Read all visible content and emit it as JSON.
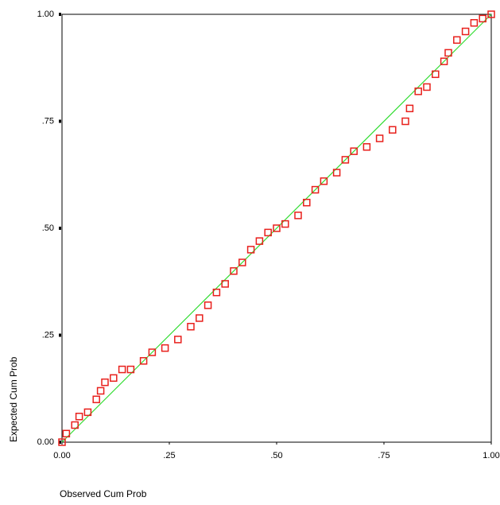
{
  "chart_data": {
    "type": "scatter",
    "xlabel": "Observed Cum Prob",
    "ylabel": "Expected Cum Prob",
    "xlim": [
      0,
      1
    ],
    "ylim": [
      0,
      1
    ],
    "xticks": [
      {
        "value": 0,
        "label": "0.00"
      },
      {
        "value": 0.25,
        "label": ".25"
      },
      {
        "value": 0.5,
        "label": ".50"
      },
      {
        "value": 0.75,
        "label": ".75"
      },
      {
        "value": 1,
        "label": "1.00"
      }
    ],
    "yticks": [
      {
        "value": 0,
        "label": "0.00"
      },
      {
        "value": 0.25,
        "label": ".25"
      },
      {
        "value": 0.5,
        "label": ".50"
      },
      {
        "value": 0.75,
        "label": ".75"
      },
      {
        "value": 1,
        "label": "1.00"
      }
    ],
    "reference_line_color": "#33dd33",
    "color": "#e8201c",
    "x": [
      0.0,
      0.01,
      0.03,
      0.04,
      0.06,
      0.08,
      0.09,
      0.1,
      0.12,
      0.14,
      0.16,
      0.19,
      0.21,
      0.24,
      0.27,
      0.3,
      0.32,
      0.34,
      0.36,
      0.38,
      0.4,
      0.42,
      0.44,
      0.46,
      0.48,
      0.5,
      0.52,
      0.55,
      0.57,
      0.59,
      0.61,
      0.64,
      0.66,
      0.68,
      0.71,
      0.74,
      0.77,
      0.8,
      0.81,
      0.83,
      0.85,
      0.87,
      0.89,
      0.9,
      0.92,
      0.94,
      0.96,
      0.98,
      1.0
    ],
    "values": [
      0.0,
      0.02,
      0.04,
      0.06,
      0.07,
      0.1,
      0.12,
      0.14,
      0.15,
      0.17,
      0.17,
      0.19,
      0.21,
      0.22,
      0.24,
      0.27,
      0.29,
      0.32,
      0.35,
      0.37,
      0.4,
      0.42,
      0.45,
      0.47,
      0.49,
      0.5,
      0.51,
      0.53,
      0.56,
      0.59,
      0.61,
      0.63,
      0.66,
      0.68,
      0.69,
      0.71,
      0.73,
      0.75,
      0.78,
      0.82,
      0.83,
      0.86,
      0.89,
      0.91,
      0.94,
      0.96,
      0.98,
      0.99,
      1.0
    ]
  }
}
